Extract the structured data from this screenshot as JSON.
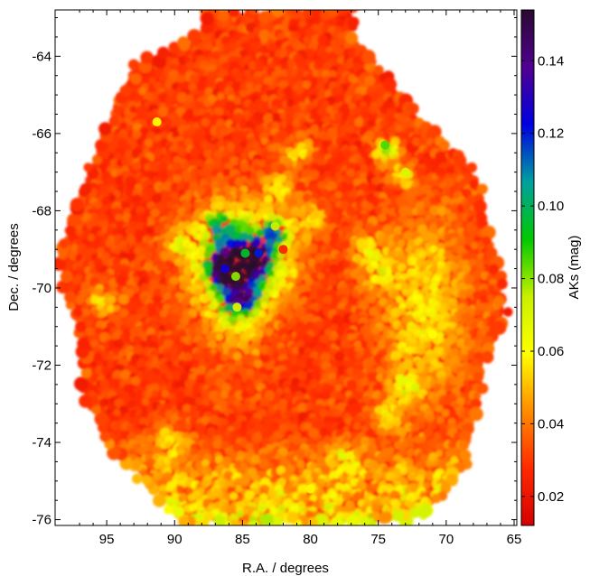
{
  "chart_data": {
    "type": "heatmap",
    "title": "",
    "xlabel": "R.A. / degrees",
    "ylabel": "Dec. / degrees",
    "xlim": [
      98.8,
      64.8
    ],
    "ylim": [
      -76.15,
      -62.8
    ],
    "x_reversed": true,
    "xticks": [
      95,
      90,
      85,
      80,
      75,
      70,
      65
    ],
    "xtick_labels": [
      "95",
      "90",
      "85",
      "80",
      "75",
      "70",
      "65"
    ],
    "yticks": [
      -64,
      -66,
      -68,
      -70,
      -72,
      -74,
      -76
    ],
    "ytick_labels": [
      "-64",
      "-66",
      "-68",
      "-70",
      "-72",
      "-74",
      "-76"
    ],
    "colorbar": {
      "label": "AKs (mag)",
      "range": [
        0.012,
        0.154
      ],
      "ticks": [
        0.02,
        0.04,
        0.06,
        0.08,
        0.1,
        0.12,
        0.14
      ],
      "tick_labels": [
        "0.02",
        "0.04",
        "0.06",
        "0.08",
        "0.10",
        "0.12",
        "0.14"
      ],
      "colormap": [
        "#d40000",
        "#ff2a00",
        "#ff8c00",
        "#ffff00",
        "#c8f000",
        "#00c800",
        "#00a0a0",
        "#0000e0",
        "#500090",
        "#2a0a30"
      ]
    },
    "grid": false,
    "regions": [
      {
        "ra": 82.0,
        "dec": -69.0,
        "akslevel": 0.025
      },
      {
        "ra": 85.5,
        "dec": -69.7,
        "akslevel": 0.08
      },
      {
        "ra": 84.8,
        "dec": -69.1,
        "akslevel": 0.095
      },
      {
        "ra": 86.3,
        "dec": -69.5,
        "akslevel": 0.125
      },
      {
        "ra": 83.8,
        "dec": -69.1,
        "akslevel": 0.12
      },
      {
        "ra": 82.6,
        "dec": -68.4,
        "akslevel": 0.075
      },
      {
        "ra": 85.4,
        "dec": -70.5,
        "akslevel": 0.07
      },
      {
        "ra": 74.5,
        "dec": -66.3,
        "akslevel": 0.085
      },
      {
        "ra": 73.0,
        "dec": -67.0,
        "akslevel": 0.07
      },
      {
        "ra": 91.3,
        "dec": -65.7,
        "akslevel": 0.06
      },
      {
        "ra": 71.0,
        "dec": -71.2,
        "akslevel": 0.06
      },
      {
        "ra": 80.0,
        "dec": -75.2,
        "akslevel": 0.058
      }
    ]
  }
}
